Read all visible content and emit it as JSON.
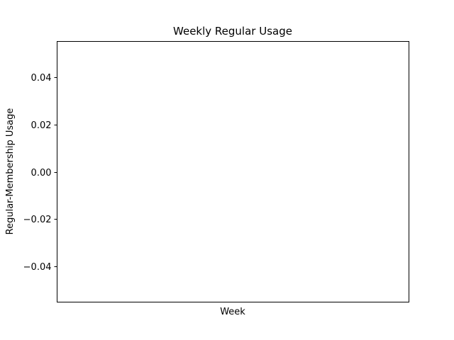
{
  "chart_data": {
    "type": "line",
    "title": "Weekly Regular Usage",
    "xlabel": "Week",
    "ylabel": "Regular-Membership Usage",
    "x": [],
    "series": [
      {
        "values": []
      }
    ],
    "ylim": [
      -0.055,
      0.055
    ],
    "yticks": [
      {
        "value": 0.04,
        "label": "0.04"
      },
      {
        "value": 0.02,
        "label": "0.02"
      },
      {
        "value": 0.0,
        "label": "0.00"
      },
      {
        "value": -0.02,
        "label": "−0.02"
      },
      {
        "value": -0.04,
        "label": "−0.04"
      }
    ],
    "xticks": [],
    "grid": false,
    "legend": "none"
  }
}
